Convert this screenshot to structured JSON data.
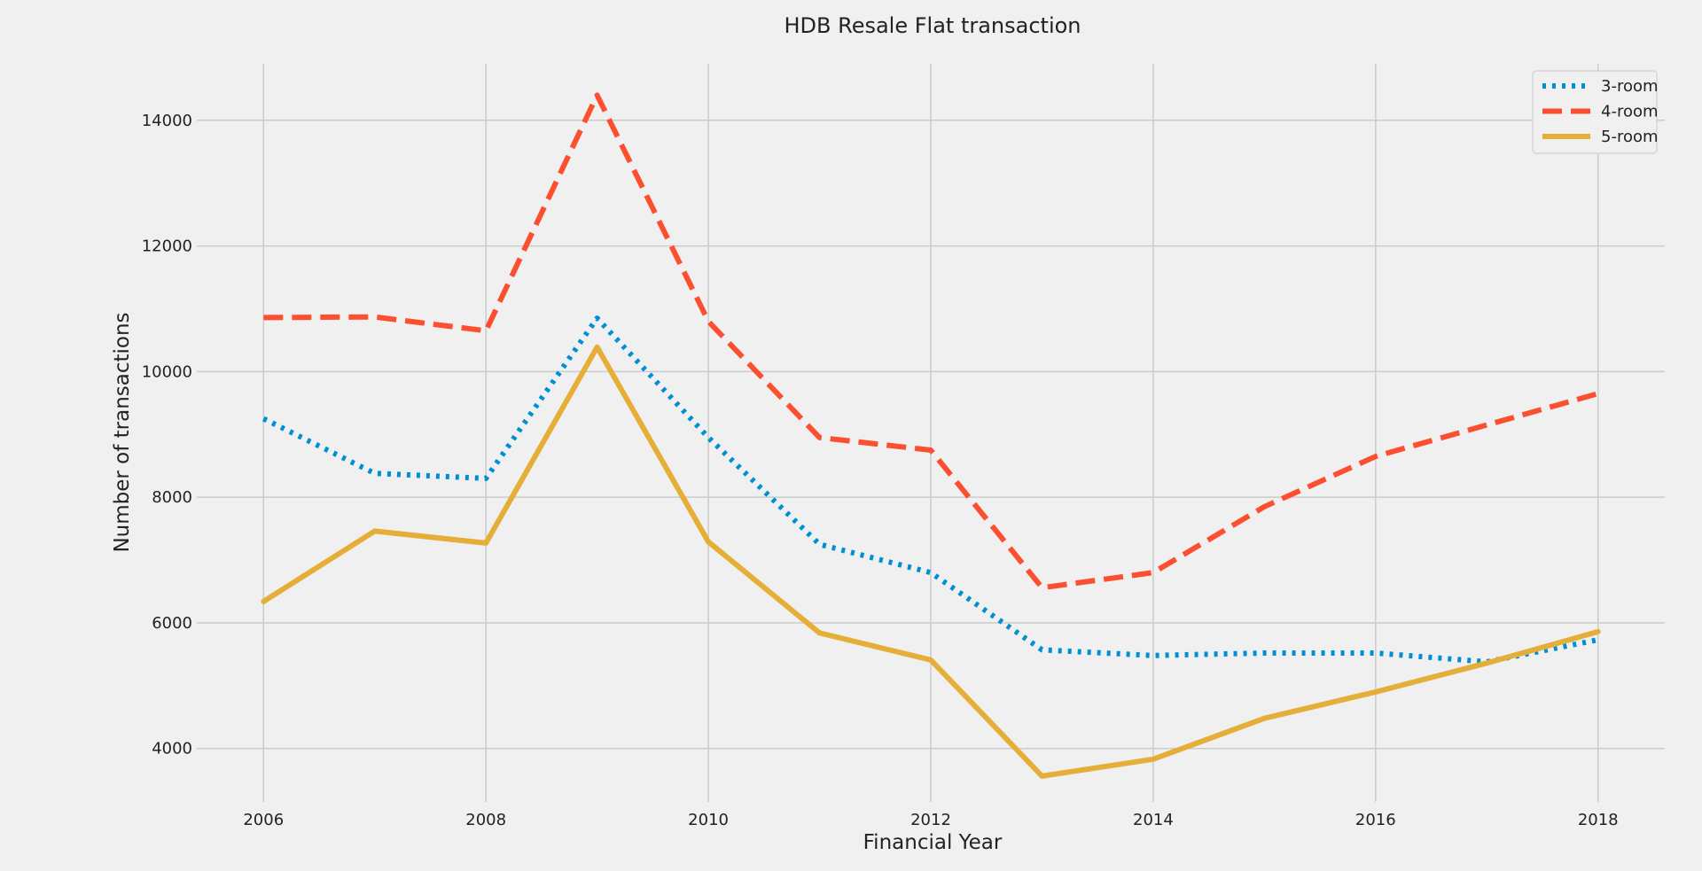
{
  "chart_data": {
    "type": "line",
    "title": "HDB Resale Flat transaction",
    "xlabel": "Financial Year",
    "ylabel": "Number of transactions",
    "x": [
      2006,
      2007,
      2008,
      2009,
      2010,
      2011,
      2012,
      2013,
      2014,
      2015,
      2016,
      2017,
      2018
    ],
    "xlim": [
      2005.4,
      2018.6
    ],
    "ylim": [
      3150,
      14900
    ],
    "xticks": [
      2006,
      2008,
      2010,
      2012,
      2014,
      2016,
      2018
    ],
    "yticks": [
      4000,
      6000,
      8000,
      10000,
      12000,
      14000
    ],
    "grid": true,
    "legend_position": "top-right",
    "series": [
      {
        "name": "3-room",
        "color": "#008fd5",
        "style": "dotted",
        "values": [
          9250,
          8380,
          8300,
          10850,
          8950,
          7250,
          6800,
          5570,
          5480,
          5520,
          5520,
          5380,
          5730
        ]
      },
      {
        "name": "4-room",
        "color": "#fc4f30",
        "style": "dashed",
        "values": [
          10860,
          10870,
          10650,
          14400,
          10800,
          8950,
          8750,
          6560,
          6800,
          7850,
          8650,
          9150,
          9650
        ]
      },
      {
        "name": "5-room",
        "color": "#e5ae38",
        "style": "solid",
        "values": [
          6340,
          7460,
          7270,
          10390,
          7290,
          5840,
          5410,
          3560,
          3830,
          4480,
          4900,
          5360,
          5860
        ]
      }
    ]
  }
}
